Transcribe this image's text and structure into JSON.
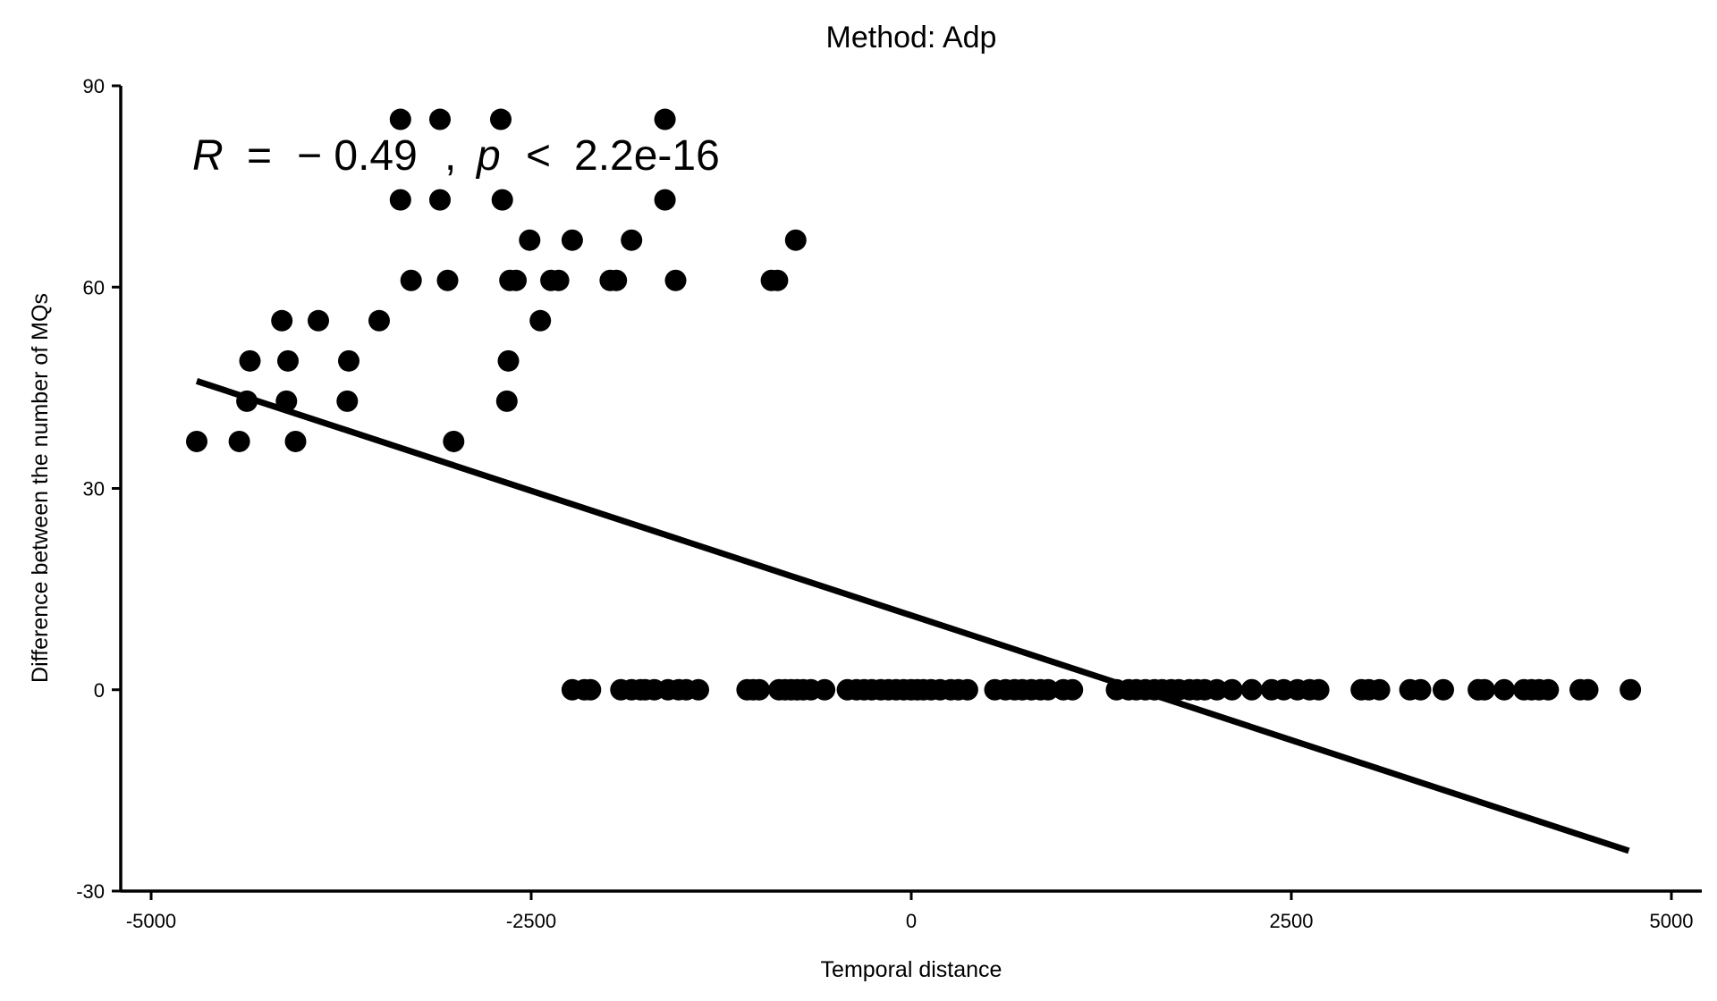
{
  "chart_data": {
    "type": "scatter",
    "title": "Method: Adp",
    "xlabel": "Temporal distance",
    "ylabel": "Difference between the number of MQs",
    "xlim": [
      -5200,
      5200
    ],
    "ylim": [
      -30,
      90
    ],
    "xticks": [
      -5000,
      -2500,
      0,
      2500,
      5000
    ],
    "xtick_labels": [
      "-5000",
      "-2500",
      "0",
      "2500",
      "5000"
    ],
    "yticks": [
      -30,
      0,
      30,
      60,
      90
    ],
    "ytick_labels": [
      "-30",
      "0",
      "30",
      "60",
      "90"
    ],
    "annotation": {
      "R_label": "R",
      "eq1": "=",
      "R_value": "− 0.49",
      "comma": ",",
      "p_label": "p",
      "lt": "<",
      "p_value": "2.2e-16"
    },
    "regression_line": {
      "x": [
        -4700,
        4720
      ],
      "y": [
        46,
        -24
      ]
    },
    "point_color": "#000000",
    "line_color": "#000000",
    "grid": false,
    "points": [
      [
        -4700,
        37
      ],
      [
        -4420,
        37
      ],
      [
        -4370,
        43
      ],
      [
        -4350,
        49
      ],
      [
        -4140,
        55
      ],
      [
        -4110,
        43
      ],
      [
        -4100,
        49
      ],
      [
        -4050,
        37
      ],
      [
        -3900,
        55
      ],
      [
        -3710,
        43
      ],
      [
        -3700,
        49
      ],
      [
        -3500,
        55
      ],
      [
        -3360,
        85
      ],
      [
        -3360,
        73
      ],
      [
        -3290,
        61
      ],
      [
        -3100,
        85
      ],
      [
        -3100,
        73
      ],
      [
        -3050,
        61
      ],
      [
        -3010,
        37
      ],
      [
        -2700,
        85
      ],
      [
        -2690,
        73
      ],
      [
        -2650,
        49
      ],
      [
        -2660,
        43
      ],
      [
        -2640,
        61
      ],
      [
        -2600,
        61
      ],
      [
        -2510,
        67
      ],
      [
        -2440,
        55
      ],
      [
        -2370,
        61
      ],
      [
        -2320,
        61
      ],
      [
        -2230,
        67
      ],
      [
        -1980,
        61
      ],
      [
        -1940,
        61
      ],
      [
        -1840,
        67
      ],
      [
        -1620,
        85
      ],
      [
        -1620,
        73
      ],
      [
        -1550,
        61
      ],
      [
        -920,
        61
      ],
      [
        -880,
        61
      ],
      [
        -760,
        67
      ],
      [
        -2230,
        0
      ],
      [
        -2150,
        0
      ],
      [
        -2110,
        0
      ],
      [
        -1910,
        0
      ],
      [
        -1840,
        0
      ],
      [
        -1780,
        0
      ],
      [
        -1750,
        0
      ],
      [
        -1690,
        0
      ],
      [
        -1600,
        0
      ],
      [
        -1530,
        0
      ],
      [
        -1480,
        0
      ],
      [
        -1400,
        0
      ],
      [
        -1080,
        0
      ],
      [
        -1040,
        0
      ],
      [
        -1000,
        0
      ],
      [
        -870,
        0
      ],
      [
        -830,
        0
      ],
      [
        -790,
        0
      ],
      [
        -750,
        0
      ],
      [
        -710,
        0
      ],
      [
        -660,
        0
      ],
      [
        -570,
        0
      ],
      [
        -420,
        0
      ],
      [
        -360,
        0
      ],
      [
        -310,
        0
      ],
      [
        -260,
        0
      ],
      [
        -200,
        0
      ],
      [
        -150,
        0
      ],
      [
        -100,
        0
      ],
      [
        -50,
        0
      ],
      [
        0,
        0
      ],
      [
        40,
        0
      ],
      [
        80,
        0
      ],
      [
        130,
        0
      ],
      [
        190,
        0
      ],
      [
        260,
        0
      ],
      [
        310,
        0
      ],
      [
        370,
        0
      ],
      [
        550,
        0
      ],
      [
        620,
        0
      ],
      [
        680,
        0
      ],
      [
        730,
        0
      ],
      [
        790,
        0
      ],
      [
        850,
        0
      ],
      [
        900,
        0
      ],
      [
        1000,
        0
      ],
      [
        1060,
        0
      ],
      [
        1350,
        0
      ],
      [
        1430,
        0
      ],
      [
        1480,
        0
      ],
      [
        1540,
        0
      ],
      [
        1600,
        0
      ],
      [
        1650,
        0
      ],
      [
        1710,
        0
      ],
      [
        1760,
        0
      ],
      [
        1830,
        0
      ],
      [
        1880,
        0
      ],
      [
        1930,
        0
      ],
      [
        2010,
        0
      ],
      [
        2110,
        0
      ],
      [
        2240,
        0
      ],
      [
        2370,
        0
      ],
      [
        2450,
        0
      ],
      [
        2540,
        0
      ],
      [
        2620,
        0
      ],
      [
        2680,
        0
      ],
      [
        2960,
        0
      ],
      [
        3010,
        0
      ],
      [
        3080,
        0
      ],
      [
        3280,
        0
      ],
      [
        3350,
        0
      ],
      [
        3500,
        0
      ],
      [
        3730,
        0
      ],
      [
        3770,
        0
      ],
      [
        3900,
        0
      ],
      [
        4030,
        0
      ],
      [
        4080,
        0
      ],
      [
        4130,
        0
      ],
      [
        4190,
        0
      ],
      [
        4400,
        0
      ],
      [
        4450,
        0
      ],
      [
        4730,
        0
      ]
    ]
  }
}
